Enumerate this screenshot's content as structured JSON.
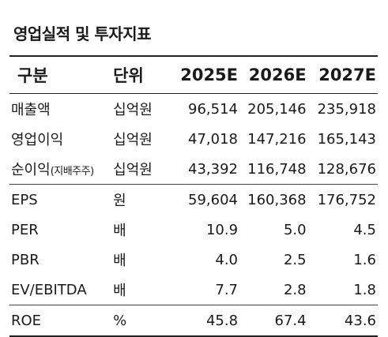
{
  "title": "영업실적 및 투자지표",
  "header": {
    "label": "구분",
    "unit": "단위",
    "years": [
      "2025E",
      "2026E",
      "2027E"
    ]
  },
  "rows": [
    {
      "label": "매출액",
      "sub": "",
      "unit": "십억원",
      "values": [
        "96,514",
        "205,146",
        "235,918"
      ]
    },
    {
      "label": "영업이익",
      "sub": "",
      "unit": "십억원",
      "values": [
        "47,018",
        "147,216",
        "165,143"
      ]
    },
    {
      "label": "순이익",
      "sub": "(지배주주)",
      "unit": "십억원",
      "values": [
        "43,392",
        "116,748",
        "128,676"
      ]
    },
    {
      "label": "EPS",
      "sub": "",
      "unit": "원",
      "values": [
        "59,604",
        "160,368",
        "176,752"
      ]
    },
    {
      "label": "PER",
      "sub": "",
      "unit": "배",
      "values": [
        "10.9",
        "5.0",
        "4.5"
      ]
    },
    {
      "label": "PBR",
      "sub": "",
      "unit": "배",
      "values": [
        "4.0",
        "2.5",
        "1.6"
      ]
    },
    {
      "label": "EV/EBITDA",
      "sub": "",
      "unit": "배",
      "values": [
        "7.7",
        "2.8",
        "1.8"
      ]
    },
    {
      "label": "ROE",
      "sub": "",
      "unit": "%",
      "values": [
        "45.8",
        "67.4",
        "43.6"
      ]
    }
  ]
}
